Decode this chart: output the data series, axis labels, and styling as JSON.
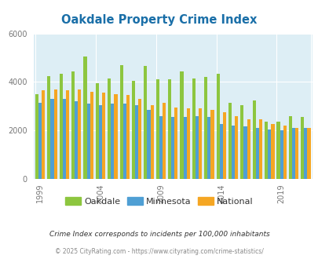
{
  "title": "Oakdale Property Crime Index",
  "title_color": "#1a6fa8",
  "years": [
    1999,
    2000,
    2001,
    2002,
    2003,
    2004,
    2005,
    2006,
    2007,
    2008,
    2009,
    2010,
    2011,
    2012,
    2013,
    2014,
    2015,
    2016,
    2017,
    2018,
    2019,
    2020,
    2021
  ],
  "oakdale": [
    3500,
    4250,
    4350,
    4450,
    5050,
    3950,
    4150,
    4700,
    4050,
    4650,
    4100,
    4100,
    4450,
    4150,
    4200,
    4350,
    3150,
    3050,
    3250,
    2350,
    2350,
    2600,
    2550
  ],
  "minnesota": [
    3150,
    3300,
    3300,
    3200,
    3100,
    3050,
    3100,
    3100,
    3050,
    2850,
    2600,
    2550,
    2550,
    2600,
    2550,
    2250,
    2200,
    2150,
    2100,
    2050,
    2000,
    2100,
    2100
  ],
  "national": [
    3650,
    3700,
    3650,
    3700,
    3600,
    3550,
    3500,
    3450,
    3300,
    3050,
    3150,
    2950,
    2900,
    2900,
    2850,
    2750,
    2600,
    2450,
    2450,
    2250,
    2200,
    2100,
    2100
  ],
  "oakdale_color": "#8dc63f",
  "minnesota_color": "#4f9fd4",
  "national_color": "#f5a623",
  "bg_color": "#ddeef5",
  "fig_color": "#ffffff",
  "ylim": [
    0,
    6000
  ],
  "yticks": [
    0,
    2000,
    4000,
    6000
  ],
  "xtick_years": [
    1999,
    2004,
    2009,
    2014,
    2019
  ],
  "legend_labels": [
    "Oakdale",
    "Minnesota",
    "National"
  ],
  "footnote1": "Crime Index corresponds to incidents per 100,000 inhabitants",
  "footnote2": "© 2025 CityRating.com - https://www.cityrating.com/crime-statistics/",
  "footnote1_color": "#333333",
  "footnote2_color": "#888888",
  "grid_color": "#ffffff",
  "tick_label_color": "#777777",
  "bar_width": 0.27
}
